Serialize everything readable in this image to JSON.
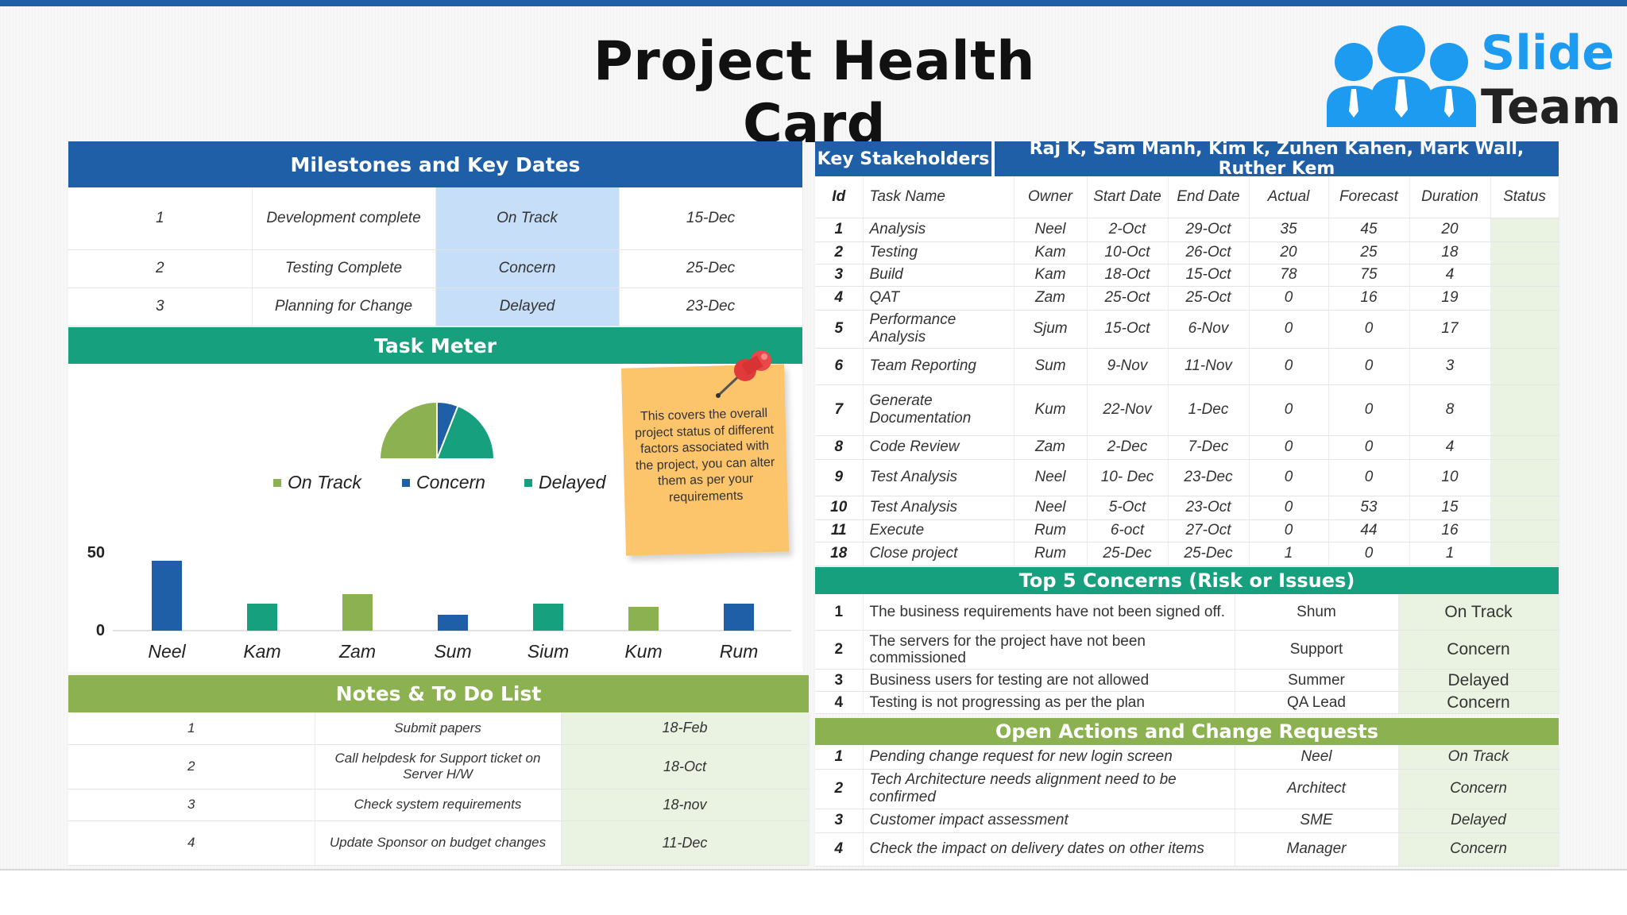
{
  "title": "Project Health Card",
  "logo": {
    "line1": "Slide",
    "line2": "Team"
  },
  "milestones": {
    "header": "Milestones and Key Dates",
    "rows": [
      {
        "id": "1",
        "name": "Development complete",
        "status": "On Track",
        "date": "15-Dec"
      },
      {
        "id": "2",
        "name": "Testing Complete",
        "status": "Concern",
        "date": "25-Dec"
      },
      {
        "id": "3",
        "name": "Planning for Change",
        "status": "Delayed",
        "date": "23-Dec"
      }
    ]
  },
  "task_meter": {
    "header": "Task Meter",
    "note": "This covers the overall project status of different factors associated with the project, you can alter them as per your requirements",
    "colors": {
      "on_track": "#8cb151",
      "concern": "#1f5fa8",
      "delayed": "#17a07e"
    }
  },
  "chart_data": [
    {
      "type": "pie",
      "categories": [
        "On Track",
        "Concern",
        "Delayed"
      ],
      "values": [
        50,
        12,
        38
      ],
      "legend": "bottom"
    },
    {
      "type": "bar",
      "categories": [
        "Neel",
        "Kam",
        "Zam",
        "Sum",
        "Sium",
        "Kum",
        "Rum"
      ],
      "values": [
        44,
        17,
        23,
        10,
        17,
        15,
        17
      ],
      "colors": [
        "#1f5fa8",
        "#17a07e",
        "#8cb151",
        "#1f5fa8",
        "#17a07e",
        "#8cb151",
        "#1f5fa8"
      ],
      "yticks": [
        "50",
        "0"
      ],
      "ylim": [
        0,
        50
      ]
    }
  ],
  "notes": {
    "header": "Notes & To Do List",
    "rows": [
      {
        "id": "1",
        "task": "Submit papers",
        "date": "18-Feb"
      },
      {
        "id": "2",
        "task": "Call helpdesk for Support ticket on Server H/W",
        "date": "18-Oct"
      },
      {
        "id": "3",
        "task": "Check system requirements",
        "date": "18-nov"
      },
      {
        "id": "4",
        "task": "Update Sponsor on budget changes",
        "date": "11-Dec"
      }
    ]
  },
  "stakeholders": {
    "label": "Key Stakeholders",
    "names": "Raj K, Sam Manh, Kim k, Zuhen Kahen, Mark Wall, Ruther Kem"
  },
  "tasks": {
    "columns": [
      "Id",
      "Task Name",
      "Owner",
      "Start Date",
      "End Date",
      "Actual",
      "Forecast",
      "Duration",
      "Status"
    ],
    "rows": [
      {
        "id": "1",
        "name": "Analysis",
        "owner": "Neel",
        "start": "2-Oct",
        "end": "29-Oct",
        "actual": "35",
        "forecast": "45",
        "duration": "20"
      },
      {
        "id": "2",
        "name": "Testing",
        "owner": "Kam",
        "start": "10-Oct",
        "end": "26-Oct",
        "actual": "20",
        "forecast": "25",
        "duration": "18"
      },
      {
        "id": "3",
        "name": "Build",
        "owner": "Kam",
        "start": "18-Oct",
        "end": "15-Oct",
        "actual": "78",
        "forecast": "75",
        "duration": "4"
      },
      {
        "id": "4",
        "name": "QAT",
        "owner": "Zam",
        "start": "25-Oct",
        "end": "25-Oct",
        "actual": "0",
        "forecast": "16",
        "duration": "19"
      },
      {
        "id": "5",
        "name": "Performance Analysis",
        "owner": "Sjum",
        "start": "15-Oct",
        "end": "6-Nov",
        "actual": "0",
        "forecast": "0",
        "duration": "17"
      },
      {
        "id": "6",
        "name": "Team Reporting",
        "owner": "Sum",
        "start": "9-Nov",
        "end": "11-Nov",
        "actual": "0",
        "forecast": "0",
        "duration": "3"
      },
      {
        "id": "7",
        "name": "Generate Documentation",
        "owner": "Kum",
        "start": "22-Nov",
        "end": "1-Dec",
        "actual": "0",
        "forecast": "0",
        "duration": "8"
      },
      {
        "id": "8",
        "name": "Code Review",
        "owner": "Zam",
        "start": "2-Dec",
        "end": "7-Dec",
        "actual": "0",
        "forecast": "0",
        "duration": "4"
      },
      {
        "id": "9",
        "name": "Test Analysis",
        "owner": "Neel",
        "start": "10- Dec",
        "end": "23-Dec",
        "actual": "0",
        "forecast": "0",
        "duration": "10"
      },
      {
        "id": "10",
        "name": "Test Analysis",
        "owner": "Neel",
        "start": "5-Oct",
        "end": "23-Oct",
        "actual": "0",
        "forecast": "53",
        "duration": "15"
      },
      {
        "id": "11",
        "name": "Execute",
        "owner": "Rum",
        "start": "6-oct",
        "end": "27-Oct",
        "actual": "0",
        "forecast": "44",
        "duration": "16"
      },
      {
        "id": "18",
        "name": "Close project",
        "owner": "Rum",
        "start": "25-Dec",
        "end": "25-Dec",
        "actual": "1",
        "forecast": "0",
        "duration": "1"
      }
    ]
  },
  "concerns": {
    "header": "Top 5 Concerns (Risk or Issues)",
    "rows": [
      {
        "id": "1",
        "text": "The business requirements have not been signed off.",
        "owner": "Shum",
        "status": "On Track"
      },
      {
        "id": "2",
        "text": "The servers for the project have not been commissioned",
        "owner": "Support",
        "status": "Concern"
      },
      {
        "id": "3",
        "text": "Business users for testing are not allowed",
        "owner": "Summer",
        "status": "Delayed"
      },
      {
        "id": "4",
        "text": "Testing is not progressing as per the plan",
        "owner": "QA Lead",
        "status": "Concern"
      }
    ]
  },
  "actions": {
    "header": "Open Actions and Change Requests",
    "rows": [
      {
        "id": "1",
        "text": "Pending change request for new login screen",
        "owner": "Neel",
        "status": "On Track"
      },
      {
        "id": "2",
        "text": "Tech Architecture needs alignment need to be confirmed",
        "owner": "Architect",
        "status": "Concern"
      },
      {
        "id": "3",
        "text": "Customer impact assessment",
        "owner": "SME",
        "status": "Delayed"
      },
      {
        "id": "4",
        "text": "Check the impact on delivery dates on other items",
        "owner": "Manager",
        "status": "Concern"
      }
    ]
  }
}
